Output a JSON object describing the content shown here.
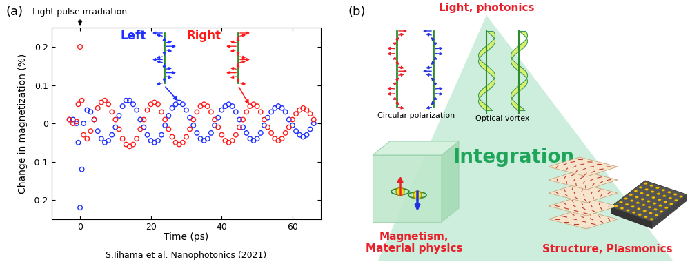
{
  "chart_data": {
    "type": "scatter",
    "panel_label": "(a)",
    "x_label": "Time (ps)",
    "y_label": "Change in magnetization (%)",
    "source": "S.Iihama et al. Nanophotonics (2021)",
    "annotations": [
      {
        "text": "Light pulse irradiation",
        "x": 0
      }
    ],
    "x": [
      -3,
      -2,
      -1,
      -0.5,
      0,
      0.5,
      1,
      2,
      3,
      4,
      5,
      6,
      7,
      8,
      9,
      10,
      11,
      12,
      13,
      14,
      15,
      16,
      17,
      18,
      19,
      20,
      21,
      22,
      23,
      24,
      25,
      26,
      27,
      28,
      29,
      30,
      31,
      32,
      33,
      34,
      35,
      36,
      37,
      38,
      39,
      40,
      41,
      42,
      43,
      44,
      45,
      46,
      47,
      48,
      49,
      50,
      51,
      52,
      53,
      54,
      55,
      56,
      57,
      58,
      59,
      60,
      61,
      62,
      63,
      64,
      65,
      66
    ],
    "series": [
      {
        "name": "Left",
        "color": "#1f2fff",
        "marker": "o",
        "line_style": "none",
        "values": [
          0.01,
          0.01,
          0.0,
          -0.05,
          -0.22,
          -0.12,
          0.0,
          0.035,
          0.03,
          0.01,
          -0.02,
          -0.04,
          -0.05,
          -0.045,
          -0.03,
          -0.01,
          0.02,
          0.045,
          0.06,
          0.06,
          0.05,
          0.035,
          0.01,
          -0.01,
          -0.03,
          -0.045,
          -0.05,
          -0.045,
          -0.03,
          -0.005,
          0.02,
          0.04,
          0.05,
          0.055,
          0.05,
          0.035,
          0.015,
          -0.005,
          -0.025,
          -0.04,
          -0.045,
          -0.04,
          -0.025,
          -0.005,
          0.015,
          0.035,
          0.045,
          0.05,
          0.045,
          0.03,
          0.01,
          -0.01,
          -0.025,
          -0.04,
          -0.045,
          -0.04,
          -0.025,
          -0.005,
          0.015,
          0.03,
          0.04,
          0.045,
          0.04,
          0.03,
          0.01,
          -0.005,
          -0.02,
          -0.03,
          -0.035,
          -0.03,
          -0.015,
          0.0
        ]
      },
      {
        "name": "Right",
        "color": "#ff1a1a",
        "marker": "o",
        "line_style": "none",
        "values": [
          0.01,
          0.0,
          0.005,
          0.05,
          0.2,
          0.06,
          -0.03,
          -0.04,
          -0.02,
          0.01,
          0.04,
          0.055,
          0.06,
          0.05,
          0.03,
          0.01,
          -0.015,
          -0.04,
          -0.055,
          -0.06,
          -0.055,
          -0.04,
          -0.015,
          0.01,
          0.035,
          0.05,
          0.055,
          0.05,
          0.03,
          0.01,
          -0.015,
          -0.035,
          -0.05,
          -0.055,
          -0.05,
          -0.035,
          -0.015,
          0.01,
          0.03,
          0.045,
          0.05,
          0.045,
          0.03,
          0.01,
          -0.01,
          -0.03,
          -0.045,
          -0.05,
          -0.045,
          -0.03,
          -0.01,
          0.01,
          0.03,
          0.045,
          0.05,
          0.045,
          0.03,
          0.01,
          -0.01,
          -0.025,
          -0.04,
          -0.045,
          -0.04,
          -0.025,
          -0.01,
          0.01,
          0.025,
          0.035,
          0.04,
          0.035,
          0.025,
          0.01
        ]
      }
    ],
    "xlim": [
      -8,
      68
    ],
    "xticks": [
      0,
      20,
      40,
      60
    ],
    "ylim": [
      -0.25,
      0.25
    ],
    "yticks": [
      -0.2,
      -0.1,
      0,
      0.1,
      0.2
    ],
    "grid": false
  },
  "diagram": {
    "panel_label": "(b)",
    "top": {
      "label": "Light, photonics",
      "items": [
        "Circular polarization",
        "Optical vortex"
      ]
    },
    "center": "Integration",
    "bottom_left": "Magnetism,\nMaterial physics",
    "bottom_right": "Structure, Plasmonics"
  }
}
